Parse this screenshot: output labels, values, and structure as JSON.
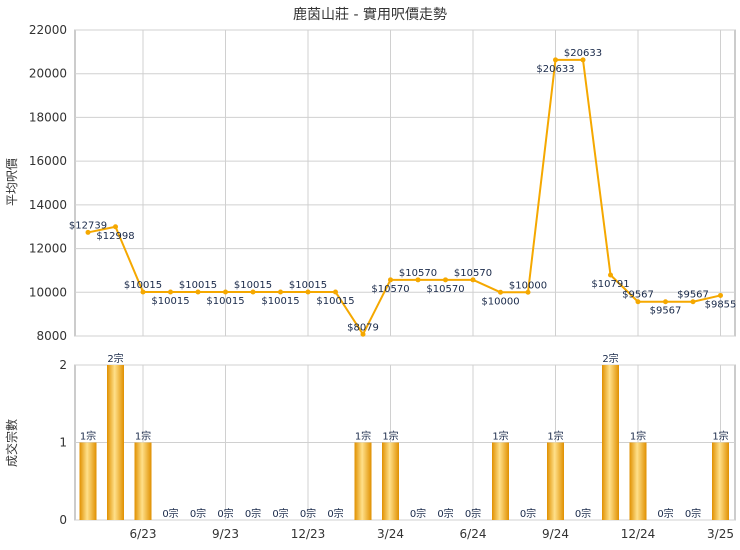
{
  "chart_data": [
    {
      "type": "line",
      "title": "鹿茵山莊 - 實用呎價走勢",
      "ylabel": "平均呎價",
      "ylim": [
        8000,
        22000
      ],
      "yticks": [
        8000,
        10000,
        12000,
        14000,
        16000,
        18000,
        20000,
        22000
      ],
      "grid": true,
      "x_tick_labels": [
        "6/23",
        "9/23",
        "12/23",
        "3/24",
        "6/24",
        "9/24",
        "12/24",
        "3/25"
      ],
      "x_tick_index": [
        2,
        5,
        8,
        11,
        14,
        17,
        20,
        23
      ],
      "values": [
        12739,
        12998,
        10015,
        10015,
        10015,
        10015,
        10015,
        10015,
        10015,
        10015,
        8079,
        10570,
        10570,
        10570,
        10570,
        10000,
        10000,
        20633,
        20633,
        10791,
        9567,
        9567,
        9567,
        9855
      ],
      "value_labels": [
        "$12739",
        "$12998",
        "$10015",
        "$10015",
        "$10015",
        "$10015",
        "$10015",
        "$10015",
        "$10015",
        "$10015",
        "$8079",
        "$10570",
        "$10570",
        "$10570",
        "$10570",
        "$10000",
        "$10000",
        "$20633",
        "$20633",
        "$10791",
        "$9567",
        "$9567",
        "$9567",
        "$9855"
      ],
      "color": "#f5a800"
    },
    {
      "type": "bar",
      "ylabel": "成交宗數",
      "ylim": [
        0,
        2
      ],
      "yticks": [
        0,
        1,
        2
      ],
      "grid": true,
      "x_tick_labels": [
        "6/23",
        "9/23",
        "12/23",
        "3/24",
        "6/24",
        "9/24",
        "12/24",
        "3/25"
      ],
      "x_tick_index": [
        2,
        5,
        8,
        11,
        14,
        17,
        20,
        23
      ],
      "values": [
        1,
        2,
        1,
        0,
        0,
        0,
        0,
        0,
        0,
        0,
        1,
        1,
        0,
        0,
        0,
        1,
        0,
        1,
        0,
        2,
        1,
        0,
        0,
        1
      ],
      "value_labels": [
        "1宗",
        "2宗",
        "1宗",
        "0宗",
        "0宗",
        "0宗",
        "0宗",
        "0宗",
        "0宗",
        "0宗",
        "1宗",
        "1宗",
        "0宗",
        "0宗",
        "0宗",
        "1宗",
        "0宗",
        "1宗",
        "0宗",
        "2宗",
        "1宗",
        "0宗",
        "0宗",
        "1宗"
      ],
      "color": "#f0a500"
    }
  ]
}
